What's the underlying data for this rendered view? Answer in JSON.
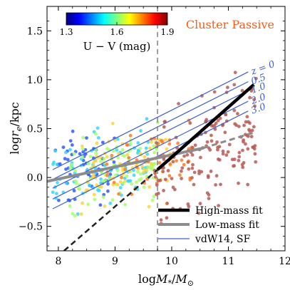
{
  "chart_data": {
    "type": "scatter",
    "title": "Cluster Passive",
    "title_color": "#ff5a14",
    "xlabel": "logM_*/M_⊙",
    "ylabel": "logr_e/kpc",
    "xlim": [
      7.8,
      12.0
    ],
    "ylim": [
      -0.75,
      1.75
    ],
    "xticks": [
      8,
      9,
      10,
      11,
      12
    ],
    "xtick_labels": [
      "8",
      "9",
      "10",
      "11",
      "12"
    ],
    "yticks": [
      -0.5,
      0.0,
      0.5,
      1.0,
      1.5
    ],
    "ytick_labels": [
      "−0.5",
      "0.0",
      "0.5",
      "1.0",
      "1.5"
    ],
    "grid": false,
    "mass_divider_x": 9.75,
    "colorbar": {
      "label": "U − V (mag)",
      "min": 1.3,
      "max": 1.9,
      "ticks": [
        "1.3",
        "1.6",
        "1.9"
      ],
      "colormap": "jet"
    },
    "scatter_groups": [
      {
        "name": "U-V ~1.3-1.4",
        "color": "#2c5bff",
        "x_range": [
          7.9,
          9.0
        ],
        "y_center": 0.15,
        "count": 60
      },
      {
        "name": "U-V ~1.5",
        "color": "#35d6ff",
        "x_range": [
          7.9,
          9.6
        ],
        "y_center": 0.12,
        "count": 90
      },
      {
        "name": "U-V ~1.6",
        "color": "#a6ff6a",
        "x_range": [
          8.2,
          9.8
        ],
        "y_center": 0.1,
        "count": 90
      },
      {
        "name": "U-V ~1.7",
        "color": "#ffd23a",
        "x_range": [
          8.4,
          10.0
        ],
        "y_center": 0.08,
        "count": 80
      },
      {
        "name": "U-V ~1.8",
        "color": "#ff7a2a",
        "x_range": [
          8.8,
          10.4
        ],
        "y_center": 0.1,
        "count": 50
      },
      {
        "name": "U-V ~1.9",
        "color": "#b85a55",
        "x_range": [
          9.7,
          11.5
        ],
        "y_center": 0.2,
        "count": 170
      }
    ],
    "vdW14_lines": [
      {
        "z": "z = 0",
        "x": [
          7.9,
          11.35
        ],
        "y": [
          0.08,
          1.08
        ]
      },
      {
        "z": "0.5",
        "x": [
          7.9,
          11.35
        ],
        "y": [
          -0.02,
          0.98
        ]
      },
      {
        "z": "1.0",
        "x": [
          7.9,
          11.35
        ],
        "y": [
          -0.11,
          0.89
        ]
      },
      {
        "z": "2.0",
        "x": [
          7.9,
          11.35
        ],
        "y": [
          -0.22,
          0.78
        ]
      },
      {
        "z": "3.0",
        "x": [
          7.9,
          11.35
        ],
        "y": [
          -0.32,
          0.68
        ]
      }
    ],
    "vdW14_color": "#3e5fd1",
    "high_mass_fit": {
      "solid_x": [
        9.75,
        11.45
      ],
      "solid_y": [
        0.08,
        0.95
      ],
      "dashed_x": [
        8.1,
        9.75
      ],
      "dashed_y": [
        -0.75,
        0.08
      ]
    },
    "low_mass_fit": {
      "solid_x": [
        7.8,
        10.55
      ],
      "solid_y": [
        -0.04,
        0.3
      ],
      "dashed_x": [
        10.55,
        11.45
      ],
      "dashed_y": [
        0.3,
        0.46
      ]
    },
    "legend": {
      "placement": "lower-right",
      "entries": [
        {
          "label": "High-mass fit",
          "color": "#000000",
          "style": "thick"
        },
        {
          "label": "Low-mass fit",
          "color": "#8c8c8c",
          "style": "thick"
        },
        {
          "label": "vdW14, SF",
          "color": "#3e5fd1",
          "style": "thin"
        }
      ]
    }
  }
}
